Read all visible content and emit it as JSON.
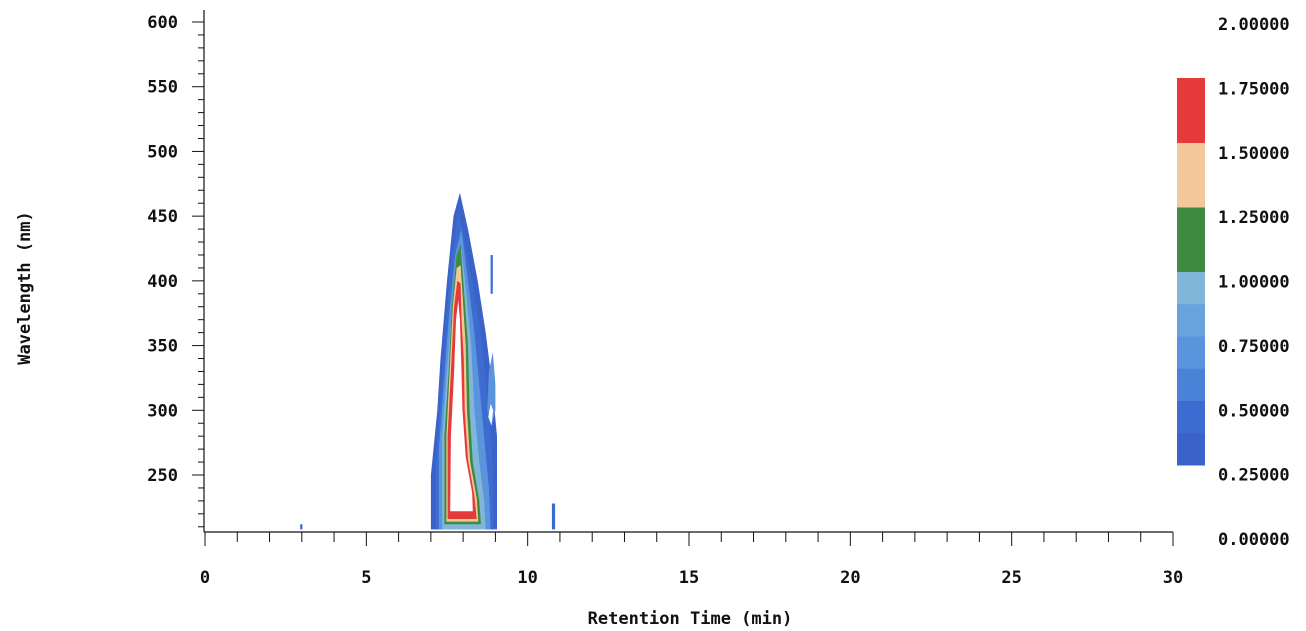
{
  "chart_data": {
    "type": "heatmap",
    "subtype": "contour",
    "xlabel": "Retention Time (min)",
    "ylabel": "Wavelength (nm)",
    "xlim": [
      0,
      30
    ],
    "ylim": [
      208,
      610
    ],
    "x_ticks": [
      0,
      5,
      10,
      15,
      20,
      25,
      30
    ],
    "y_ticks": [
      250,
      300,
      350,
      400,
      450,
      500,
      550,
      600
    ],
    "colorbar": {
      "ticks": [
        "0.00000",
        "0.25000",
        "0.50000",
        "0.75000",
        "1.00000",
        "1.25000",
        "1.50000",
        "1.75000",
        "2.00000"
      ],
      "range": [
        0.0,
        2.0
      ],
      "bands": [
        {
          "from": 0.25,
          "to": 0.375,
          "color": "#3a62c8"
        },
        {
          "from": 0.375,
          "to": 0.5,
          "color": "#3c6cd0"
        },
        {
          "from": 0.5,
          "to": 0.625,
          "color": "#4a82d8"
        },
        {
          "from": 0.625,
          "to": 0.75,
          "color": "#5a94dd"
        },
        {
          "from": 0.75,
          "to": 0.875,
          "color": "#6aa2de"
        },
        {
          "from": 0.875,
          "to": 1.0,
          "color": "#7fb6da"
        },
        {
          "from": 1.0,
          "to": 1.25,
          "color": "#3e8a3e"
        },
        {
          "from": 1.25,
          "to": 1.5,
          "color": "#f4c79a"
        },
        {
          "from": 1.5,
          "to": 1.75,
          "color": "#e63a3a"
        }
      ]
    },
    "peaks": [
      {
        "retention_time_min": 7.9,
        "wavelength_range_nm": [
          208,
          468
        ],
        "max_level": 1.75
      },
      {
        "retention_time_min": 8.9,
        "wavelength_range_nm": [
          208,
          420
        ],
        "max_level": 0.5
      },
      {
        "retention_time_min": 10.8,
        "wavelength_range_nm": [
          208,
          230
        ],
        "max_level": 0.25
      }
    ],
    "grid": false
  }
}
